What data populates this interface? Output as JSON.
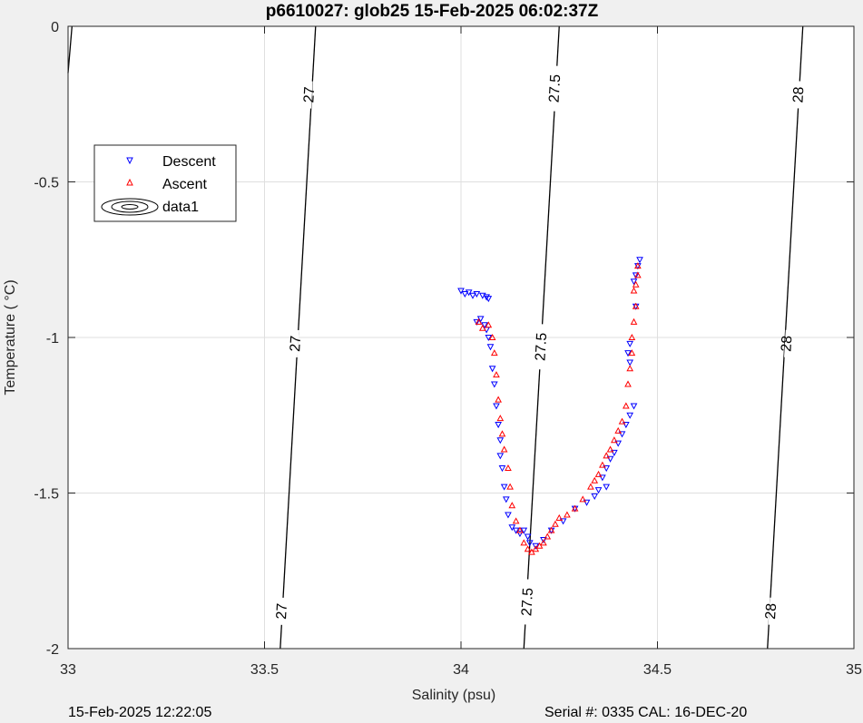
{
  "chart_data": {
    "type": "scatter",
    "title": "p6610027: glob25 15-Feb-2025 06:02:37Z",
    "xlabel": "Salinity (psu)",
    "ylabel": "Temperature (   °C)",
    "xlim": [
      33,
      35
    ],
    "ylim": [
      -2,
      0
    ],
    "x_ticks": [
      33,
      33.5,
      34,
      34.5,
      35
    ],
    "x_tick_labels": [
      "33",
      "33.5",
      "34",
      "34.5",
      "35"
    ],
    "y_ticks": [
      0,
      -0.5,
      -1,
      -1.5,
      -2
    ],
    "y_tick_labels": [
      "0",
      "-0.5",
      "-1",
      "-1.5",
      "-2"
    ],
    "grid": true,
    "legend": {
      "placement": "upper-left",
      "entries": [
        "Descent",
        "Ascent",
        "data1"
      ]
    },
    "series": [
      {
        "name": "Descent",
        "marker": "down-triangle",
        "color": "#0000ff",
        "points": [
          [
            34.0,
            -0.85
          ],
          [
            34.01,
            -0.86
          ],
          [
            34.02,
            -0.855
          ],
          [
            34.03,
            -0.865
          ],
          [
            34.04,
            -0.86
          ],
          [
            34.055,
            -0.865
          ],
          [
            34.065,
            -0.87
          ],
          [
            34.07,
            -0.875
          ],
          [
            34.04,
            -0.95
          ],
          [
            34.05,
            -0.94
          ],
          [
            34.06,
            -0.96
          ],
          [
            34.065,
            -0.975
          ],
          [
            34.07,
            -1.0
          ],
          [
            34.075,
            -1.03
          ],
          [
            34.08,
            -1.1
          ],
          [
            34.085,
            -1.15
          ],
          [
            34.09,
            -1.22
          ],
          [
            34.095,
            -1.28
          ],
          [
            34.1,
            -1.33
          ],
          [
            34.1,
            -1.38
          ],
          [
            34.105,
            -1.42
          ],
          [
            34.11,
            -1.48
          ],
          [
            34.115,
            -1.52
          ],
          [
            34.12,
            -1.57
          ],
          [
            34.13,
            -1.61
          ],
          [
            34.14,
            -1.62
          ],
          [
            34.15,
            -1.63
          ],
          [
            34.16,
            -1.62
          ],
          [
            34.17,
            -1.64
          ],
          [
            34.175,
            -1.66
          ],
          [
            34.19,
            -1.67
          ],
          [
            34.21,
            -1.65
          ],
          [
            34.23,
            -1.62
          ],
          [
            34.26,
            -1.59
          ],
          [
            34.29,
            -1.55
          ],
          [
            34.32,
            -1.53
          ],
          [
            34.34,
            -1.51
          ],
          [
            34.35,
            -1.49
          ],
          [
            34.37,
            -1.48
          ],
          [
            34.36,
            -1.45
          ],
          [
            34.37,
            -1.42
          ],
          [
            34.38,
            -1.39
          ],
          [
            34.39,
            -1.37
          ],
          [
            34.4,
            -1.34
          ],
          [
            34.41,
            -1.31
          ],
          [
            34.42,
            -1.28
          ],
          [
            34.43,
            -1.25
          ],
          [
            34.44,
            -1.22
          ],
          [
            34.425,
            -1.05
          ],
          [
            34.43,
            -1.08
          ],
          [
            34.43,
            -1.02
          ],
          [
            34.445,
            -0.9
          ],
          [
            34.44,
            -0.82
          ],
          [
            34.445,
            -0.8
          ],
          [
            34.45,
            -0.77
          ],
          [
            34.455,
            -0.75
          ]
        ]
      },
      {
        "name": "Ascent",
        "marker": "up-triangle",
        "color": "#ff0000",
        "points": [
          [
            34.045,
            -0.95
          ],
          [
            34.055,
            -0.97
          ],
          [
            34.07,
            -0.96
          ],
          [
            34.08,
            -1.0
          ],
          [
            34.085,
            -1.05
          ],
          [
            34.09,
            -1.12
          ],
          [
            34.095,
            -1.2
          ],
          [
            34.1,
            -1.26
          ],
          [
            34.105,
            -1.31
          ],
          [
            34.11,
            -1.36
          ],
          [
            34.12,
            -1.42
          ],
          [
            34.125,
            -1.48
          ],
          [
            34.13,
            -1.54
          ],
          [
            34.14,
            -1.59
          ],
          [
            34.15,
            -1.62
          ],
          [
            34.16,
            -1.66
          ],
          [
            34.17,
            -1.68
          ],
          [
            34.18,
            -1.69
          ],
          [
            34.19,
            -1.68
          ],
          [
            34.2,
            -1.67
          ],
          [
            34.21,
            -1.66
          ],
          [
            34.22,
            -1.64
          ],
          [
            34.23,
            -1.62
          ],
          [
            34.24,
            -1.6
          ],
          [
            34.25,
            -1.58
          ],
          [
            34.27,
            -1.57
          ],
          [
            34.29,
            -1.55
          ],
          [
            34.31,
            -1.52
          ],
          [
            34.33,
            -1.48
          ],
          [
            34.34,
            -1.46
          ],
          [
            34.35,
            -1.44
          ],
          [
            34.36,
            -1.41
          ],
          [
            34.37,
            -1.38
          ],
          [
            34.38,
            -1.36
          ],
          [
            34.39,
            -1.33
          ],
          [
            34.4,
            -1.3
          ],
          [
            34.41,
            -1.27
          ],
          [
            34.42,
            -1.22
          ],
          [
            34.425,
            -1.15
          ],
          [
            34.43,
            -1.1
          ],
          [
            34.435,
            -1.05
          ],
          [
            34.435,
            -1.0
          ],
          [
            34.44,
            -0.95
          ],
          [
            34.445,
            -0.9
          ],
          [
            34.44,
            -0.85
          ],
          [
            34.445,
            -0.83
          ],
          [
            34.45,
            -0.8
          ],
          [
            34.45,
            -0.77
          ]
        ]
      },
      {
        "name": "data1",
        "type": "contour",
        "color": "#000000",
        "levels": [
          {
            "label": "27",
            "line": [
              [
                33.63,
                0
              ],
              [
                33.54,
                -2
              ]
            ],
            "label_points": [
              [
                33.615,
                -0.22
              ],
              [
                33.58,
                -1.02
              ],
              [
                33.545,
                -1.88
              ]
            ]
          },
          {
            "label": "27.5",
            "line": [
              [
                34.25,
                0
              ],
              [
                34.16,
                -2
              ]
            ],
            "label_points": [
              [
                34.24,
                -0.2
              ],
              [
                34.205,
                -1.03
              ],
              [
                34.17,
                -1.85
              ]
            ]
          },
          {
            "label": "28",
            "line": [
              [
                34.87,
                0
              ],
              [
                34.78,
                -2
              ]
            ],
            "label_points": [
              [
                34.86,
                -0.22
              ],
              [
                34.83,
                -1.02
              ],
              [
                34.79,
                -1.88
              ]
            ]
          },
          {
            "label": "",
            "line": [
              [
                33.01,
                0
              ],
              [
                33.0,
                -0.15
              ]
            ],
            "label_points": []
          }
        ]
      }
    ]
  },
  "footer": {
    "timestamp": "15-Feb-2025 12:22:05",
    "serial": "Serial #: 0335  CAL: 16-DEC-20"
  }
}
